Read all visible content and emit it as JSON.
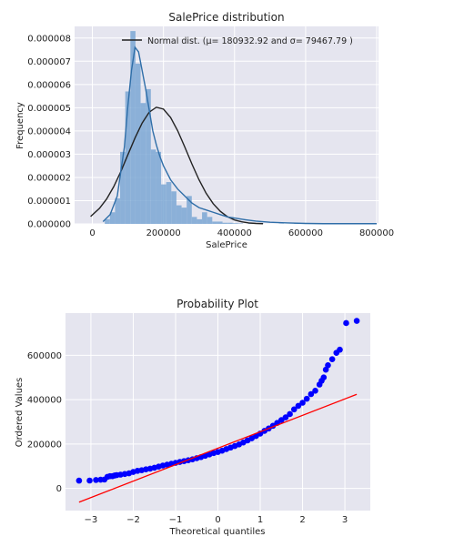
{
  "colors": {
    "panel_bg": "#e5e5ef",
    "grid": "#ffffff",
    "hist_fill": "#7ba7d4",
    "kde_line": "#2f6ea8",
    "normal_line": "#222222",
    "qq_points": "#0000ff",
    "qq_line": "#ff0000"
  },
  "chart_data": [
    {
      "type": "bar",
      "title": "SalePrice distribution",
      "xlabel": "SalePrice",
      "ylabel": "Frequency",
      "xlim": [
        -50000,
        805000
      ],
      "ylim": [
        0,
        8.5e-06
      ],
      "xticks": [
        0,
        200000,
        400000,
        600000,
        800000
      ],
      "xtick_labels": [
        "0",
        "200000",
        "400000",
        "600000",
        "800000"
      ],
      "yticks": [
        0,
        1e-06,
        2e-06,
        3e-06,
        4e-06,
        5e-06,
        6e-06,
        7e-06,
        8e-06
      ],
      "ytick_labels": [
        "0.000000",
        "0.000001",
        "0.000002",
        "0.000003",
        "0.000004",
        "0.000005",
        "0.000006",
        "0.000007",
        "0.000008"
      ],
      "grid": true,
      "legend_position": "top-right",
      "legend": [
        "Normal dist. (μ= 180932.92 and σ= 79467.79 )"
      ],
      "histogram": {
        "bin_start": 34900,
        "bin_width": 14402,
        "values": [
          2e-07,
          5e-07,
          1.1e-06,
          3.1e-06,
          5.7e-06,
          8.3e-06,
          6.9e-06,
          5.2e-06,
          5.8e-06,
          3.2e-06,
          3.1e-06,
          1.7e-06,
          1.8e-06,
          1.4e-06,
          8e-07,
          7e-07,
          1.2e-06,
          3e-07,
          2e-07,
          5e-07,
          3e-07,
          1e-07,
          1e-07,
          5e-08,
          5e-08,
          3e-08,
          2e-08,
          0,
          4e-08,
          2e-08,
          2e-08,
          0,
          0,
          0,
          1e-08,
          0,
          0,
          2e-08,
          0,
          0,
          0,
          0,
          0,
          0,
          0,
          0,
          0,
          0,
          0,
          1e-08
        ]
      },
      "kde": {
        "x": [
          30000,
          50000,
          70000,
          90000,
          100000,
          110000,
          120000,
          130000,
          140000,
          150000,
          160000,
          170000,
          180000,
          190000,
          200000,
          210000,
          220000,
          240000,
          260000,
          280000,
          300000,
          320000,
          340000,
          360000,
          380000,
          400000,
          430000,
          460000,
          500000,
          550000,
          600000,
          650000,
          700000,
          750000,
          800000
        ],
        "y": [
          1e-07,
          4e-07,
          1.2e-06,
          3.3e-06,
          5.1e-06,
          6.6e-06,
          7.6e-06,
          7.4e-06,
          6.6e-06,
          5.8e-06,
          4.9e-06,
          4e-06,
          3.4e-06,
          2.9e-06,
          2.5e-06,
          2.2e-06,
          1.9e-06,
          1.5e-06,
          1.2e-06,
          9e-07,
          7e-07,
          6e-07,
          5e-07,
          4e-07,
          3e-07,
          2.5e-07,
          1.8e-07,
          1.2e-07,
          7e-08,
          4e-08,
          2e-08,
          1e-08,
          1e-08,
          1e-08,
          1e-08
        ]
      },
      "normal": {
        "x": [
          -5000,
          20000,
          40000,
          60000,
          80000,
          100000,
          120000,
          140000,
          160000,
          180000,
          200000,
          220000,
          240000,
          260000,
          280000,
          300000,
          320000,
          340000,
          360000,
          380000,
          400000,
          420000,
          440000,
          460000,
          480000
        ],
        "y": [
          3.2e-07,
          6.7e-07,
          1.07e-06,
          1.6e-06,
          2.25e-06,
          2.98e-06,
          3.7e-06,
          4.34e-06,
          4.81e-06,
          5.02e-06,
          4.94e-06,
          4.58e-06,
          4.01e-06,
          3.31e-06,
          2.58e-06,
          1.9e-06,
          1.32e-06,
          8.7e-07,
          5.4e-07,
          3.1e-07,
          1.7e-07,
          9e-08,
          4e-08,
          2e-08,
          1e-08
        ]
      }
    },
    {
      "type": "scatter",
      "title": "Probability Plot",
      "xlabel": "Theoretical quantiles",
      "ylabel": "Ordered Values",
      "xlim": [
        -3.6,
        3.6
      ],
      "ylim": [
        -100000,
        790000
      ],
      "xticks": [
        -3,
        -2,
        -1,
        0,
        1,
        2,
        3
      ],
      "xtick_labels": [
        "−3",
        "−2",
        "−1",
        "0",
        "1",
        "2",
        "3"
      ],
      "yticks": [
        0,
        200000,
        400000,
        600000
      ],
      "ytick_labels": [
        "0",
        "200000",
        "400000",
        "600000"
      ],
      "grid": true,
      "fit_line": {
        "x": [
          -3.28,
          3.28
        ],
        "y": [
          -62000,
          424000
        ]
      },
      "points": [
        [
          -3.28,
          34900
        ],
        [
          -3.03,
          35311
        ],
        [
          -2.88,
          37900
        ],
        [
          -2.77,
          39300
        ],
        [
          -2.68,
          40000
        ],
        [
          -2.61,
          52000
        ],
        [
          -2.55,
          55000
        ],
        [
          -2.49,
          55000
        ],
        [
          -2.44,
          58000
        ],
        [
          -2.39,
          60000
        ],
        [
          -2.3,
          62000
        ],
        [
          -2.2,
          65000
        ],
        [
          -2.1,
          68000
        ],
        [
          -2.0,
          74000
        ],
        [
          -1.9,
          79000
        ],
        [
          -1.8,
          82000
        ],
        [
          -1.7,
          86000
        ],
        [
          -1.6,
          89000
        ],
        [
          -1.5,
          93000
        ],
        [
          -1.4,
          98000
        ],
        [
          -1.3,
          103000
        ],
        [
          -1.2,
          107000
        ],
        [
          -1.1,
          111000
        ],
        [
          -1.0,
          115000
        ],
        [
          -0.9,
          119000
        ],
        [
          -0.8,
          123000
        ],
        [
          -0.7,
          127000
        ],
        [
          -0.6,
          131000
        ],
        [
          -0.5,
          136000
        ],
        [
          -0.4,
          141000
        ],
        [
          -0.3,
          147000
        ],
        [
          -0.2,
          153000
        ],
        [
          -0.1,
          159000
        ],
        [
          0.0,
          164000
        ],
        [
          0.1,
          170000
        ],
        [
          0.2,
          177000
        ],
        [
          0.3,
          184000
        ],
        [
          0.4,
          191000
        ],
        [
          0.5,
          198000
        ],
        [
          0.6,
          207000
        ],
        [
          0.7,
          216000
        ],
        [
          0.8,
          226000
        ],
        [
          0.9,
          236000
        ],
        [
          1.0,
          247000
        ],
        [
          1.1,
          259000
        ],
        [
          1.2,
          270000
        ],
        [
          1.3,
          282000
        ],
        [
          1.4,
          295000
        ],
        [
          1.5,
          308000
        ],
        [
          1.6,
          320000
        ],
        [
          1.7,
          335000
        ],
        [
          1.8,
          356000
        ],
        [
          1.9,
          372000
        ],
        [
          2.0,
          386000
        ],
        [
          2.1,
          404000
        ],
        [
          2.2,
          425000
        ],
        [
          2.3,
          440000
        ],
        [
          2.4,
          468000
        ],
        [
          2.45,
          485000
        ],
        [
          2.5,
          500000
        ],
        [
          2.55,
          535000
        ],
        [
          2.6,
          555000
        ],
        [
          2.7,
          582000
        ],
        [
          2.8,
          611000
        ],
        [
          2.88,
          625000
        ],
        [
          3.03,
          745000
        ],
        [
          3.28,
          755000
        ]
      ]
    }
  ]
}
